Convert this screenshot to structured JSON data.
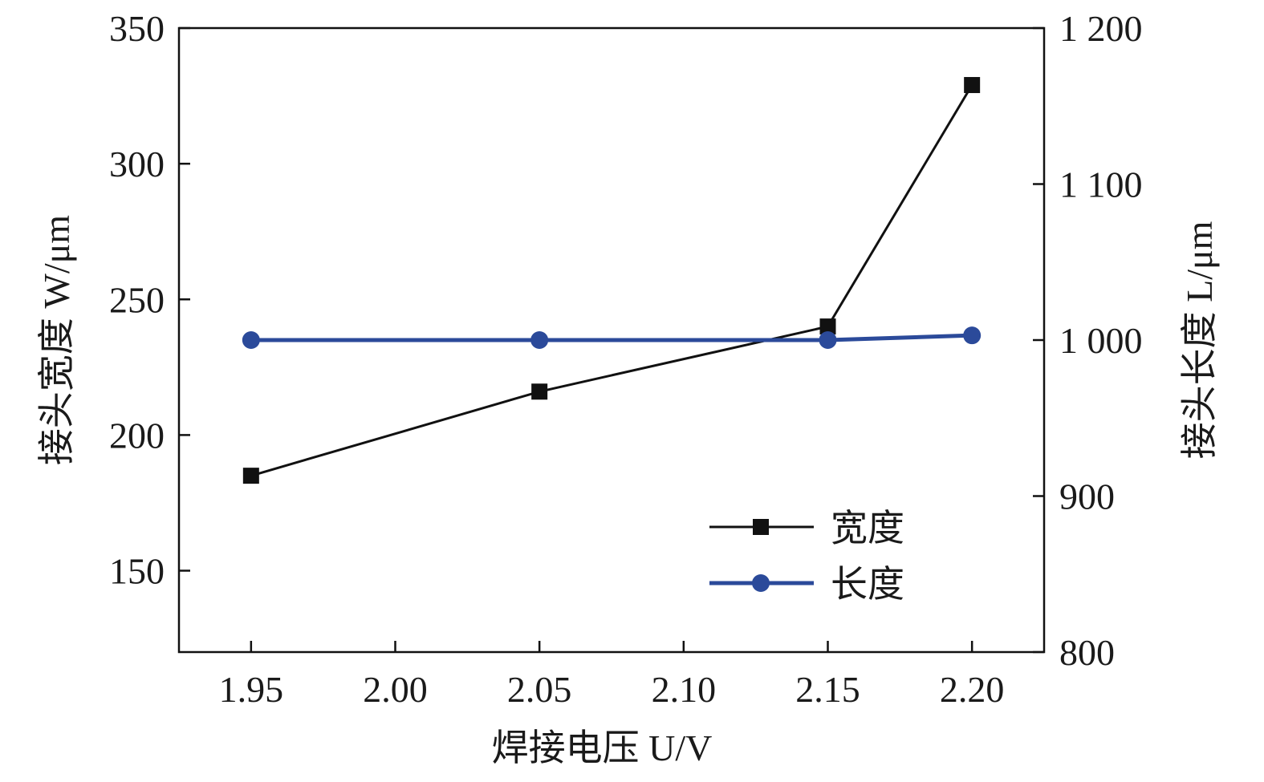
{
  "chart_data": {
    "type": "line",
    "title": "",
    "xlabel": "焊接电压 U/V",
    "ylabel": "接头宽度 W/μm",
    "y2label": "接头长度 L/μm",
    "x": [
      1.95,
      2.05,
      2.15,
      2.2
    ],
    "xlim": [
      1.925,
      2.225
    ],
    "ylim": [
      120,
      350
    ],
    "y2lim": [
      800,
      1200
    ],
    "xticks": [
      "1.95",
      "2.00",
      "2.05",
      "2.10",
      "2.15",
      "2.20"
    ],
    "xtick_values": [
      1.95,
      2.0,
      2.05,
      2.1,
      2.15,
      2.2
    ],
    "yticks": [
      "150",
      "200",
      "250",
      "300",
      "350"
    ],
    "ytick_values": [
      150,
      200,
      250,
      300,
      350
    ],
    "y2ticks": [
      "800",
      "900",
      "1 000",
      "1 100",
      "1 200"
    ],
    "y2tick_values": [
      800,
      900,
      1000,
      1100,
      1200
    ],
    "grid": false,
    "legend_position": "bottom-right",
    "series": [
      {
        "name": "宽度",
        "axis": "left",
        "marker": "square",
        "color": "#111111",
        "values": [
          185,
          216,
          240,
          329
        ]
      },
      {
        "name": "长度",
        "axis": "right",
        "marker": "circle",
        "color": "#2b4a9a",
        "values": [
          1000,
          1000,
          1000,
          1003
        ]
      }
    ]
  }
}
